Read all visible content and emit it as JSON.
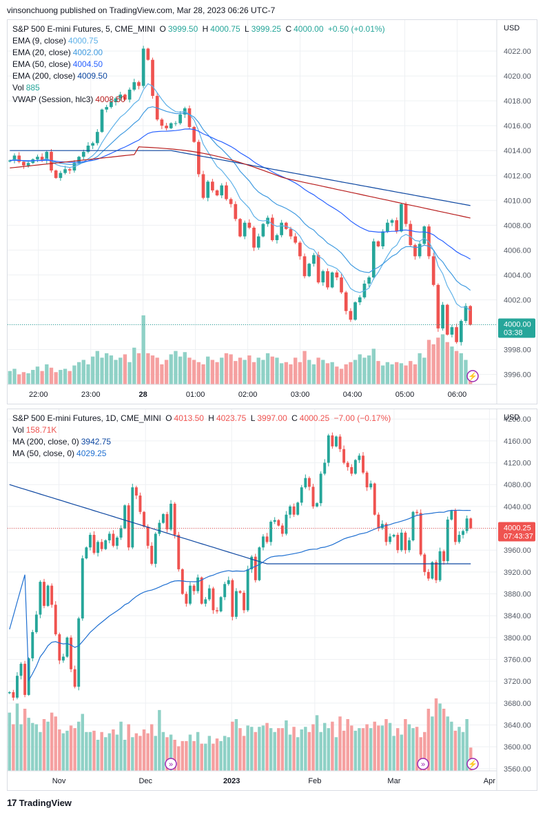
{
  "header": {
    "text": "vinsonchuong published on TradingView.com, Mar 28, 2023 06:26 UTC-7"
  },
  "footer": {
    "brand": "TradingView",
    "logo": "17"
  },
  "colors": {
    "up": "#26a69a",
    "down": "#ef5350",
    "upVol": "#8fd1c6",
    "downVol": "#f5a0a0",
    "ema9": "#5eb1e8",
    "ema20": "#3f9ae0",
    "ema50": "#2962ff",
    "ema200": "#0d47a1",
    "vwap": "#b71c1c",
    "ma200": "#0d47a1",
    "ma50": "#1e6fd1",
    "grid": "#eef0f3",
    "text": "#131722",
    "axis": "#555b66"
  },
  "panel1": {
    "legend": {
      "symbol": "S&P 500 E-mini Futures, 5, CME_MINI",
      "o_label": "O",
      "o": "3999.50",
      "h_label": "H",
      "h": "4000.75",
      "l_label": "L",
      "l": "3999.25",
      "c_label": "C",
      "c": "4000.00",
      "change": "+0.50 (+0.01%)",
      "lines": [
        {
          "label": "EMA (9, close)",
          "value": "4000.75",
          "color": "#5eb1e8"
        },
        {
          "label": "EMA (20, close)",
          "value": "4002.00",
          "color": "#3f9ae0"
        },
        {
          "label": "EMA (50, close)",
          "value": "4004.50",
          "color": "#2962ff"
        },
        {
          "label": "EMA (200, close)",
          "value": "4009.50",
          "color": "#0d47a1"
        },
        {
          "label": "Vol",
          "value": "885",
          "color": "#26a69a"
        },
        {
          "label": "VWAP (Session, hlc3)",
          "value": "4008.50",
          "color": "#b71c1c"
        }
      ]
    },
    "currency": "USD",
    "last_price": "4000.00",
    "countdown": "03:38"
  },
  "panel2": {
    "legend": {
      "symbol": "S&P 500 E-mini Futures, 1D, CME_MINI",
      "o_label": "O",
      "o": "4013.50",
      "h_label": "H",
      "h": "4023.75",
      "l_label": "L",
      "l": "3997.00",
      "c_label": "C",
      "c": "4000.25",
      "change": "−7.00 (−0.17%)",
      "lines": [
        {
          "label": "Vol",
          "value": "158.71K",
          "color": "#ef5350"
        },
        {
          "label": "MA (200, close, 0)",
          "value": "3942.75",
          "color": "#0d47a1"
        },
        {
          "label": "MA (50, close, 0)",
          "value": "4029.25",
          "color": "#1e6fd1"
        }
      ]
    },
    "currency": "USD",
    "last_price": "4000.25",
    "countdown": "07:43:37"
  },
  "chart_data": [
    {
      "type": "candlestick",
      "title": "S&P 500 E-mini Futures, 5, CME_MINI",
      "x_ticks": [
        "22:00",
        "23:00",
        "28",
        "01:00",
        "02:00",
        "03:00",
        "04:00",
        "05:00",
        "06:00"
      ],
      "y_ticks": [
        3996,
        3998,
        4000,
        4002,
        4004,
        4006,
        4008,
        4010,
        4012,
        4014,
        4016,
        4018,
        4020,
        4022
      ],
      "ylim": [
        3995.2,
        4024.5
      ],
      "closes": [
        4013.2,
        4013.6,
        4013.1,
        4012.8,
        4013.0,
        4013.3,
        4013.5,
        4013.2,
        4013.9,
        4012.4,
        4011.8,
        4012.2,
        4012.5,
        4012.4,
        4013.0,
        4013.5,
        4013.9,
        4014.4,
        4014.6,
        4015.5,
        4017.3,
        4017.5,
        4017.9,
        4018.2,
        4018.5,
        4018.1,
        4018.9,
        4019.5,
        4019.2,
        4022.2,
        4021.3,
        4018.4,
        4016.5,
        4016.0,
        4015.8,
        4016.2,
        4016.2,
        4016.9,
        4017.4,
        4015.9,
        4014.7,
        4012.1,
        4010.2,
        4011.5,
        4010.8,
        4010.4,
        4011.2,
        4010.1,
        4009.7,
        4008.5,
        4007.1,
        4008.2,
        4007.8,
        4006.2,
        4007.1,
        4008.1,
        4008.6,
        4006.8,
        4007.2,
        4008.2,
        4007.7,
        4007.1,
        4006.6,
        4005.5,
        4003.9,
        4004.9,
        4005.6,
        4003.4,
        4004.3,
        4003.0,
        4004.2,
        4003.8,
        4002.6,
        4001.1,
        4000.4,
        4001.8,
        4002.2,
        4003.3,
        4003.8,
        4006.7,
        4006.3,
        4007.5,
        4008.2,
        4008.4,
        4007.5,
        4009.7,
        4008.1,
        4006.4,
        4005.5,
        4006.5,
        4007.9,
        4005.5,
        4003.2,
        3999.7,
        4001.6,
        3999.2,
        3999.8,
        3998.6,
        4000.3,
        4001.5,
        4000.0
      ],
      "volume": [
        12,
        14,
        9,
        11,
        10,
        13,
        16,
        12,
        18,
        15,
        11,
        13,
        14,
        12,
        17,
        20,
        22,
        18,
        25,
        30,
        24,
        28,
        26,
        22,
        24,
        27,
        20,
        33,
        28,
        62,
        28,
        26,
        24,
        18,
        22,
        27,
        30,
        25,
        29,
        24,
        22,
        20,
        18,
        25,
        22,
        20,
        24,
        28,
        27,
        21,
        24,
        22,
        26,
        20,
        24,
        22,
        28,
        25,
        24,
        19,
        20,
        18,
        24,
        20,
        30,
        22,
        18,
        24,
        22,
        19,
        20,
        16,
        14,
        18,
        20,
        22,
        27,
        24,
        26,
        32,
        21,
        17,
        20,
        18,
        20,
        19,
        17,
        21,
        18,
        28,
        24,
        40,
        36,
        42,
        45,
        38,
        34,
        30,
        28,
        22,
        8
      ],
      "vwap_last": 4008.5,
      "session_start_label": "28"
    },
    {
      "type": "candlestick",
      "title": "S&P 500 E-mini Futures, 1D, CME_MINI",
      "x_ticks": [
        "Nov",
        "Dec",
        "2023",
        "Feb",
        "Mar",
        "Apr"
      ],
      "y_ticks": [
        3560,
        3600,
        3640,
        3680,
        3720,
        3760,
        3800,
        3840,
        3880,
        3920,
        3960,
        4000,
        4040,
        4080,
        4120,
        4160,
        4200
      ],
      "ylim": [
        3556,
        4218
      ],
      "closes": [
        3700,
        3690,
        3730,
        3752,
        3695,
        3762,
        3810,
        3842,
        3902,
        3858,
        3895,
        3860,
        3806,
        3758,
        3765,
        3800,
        3742,
        3710,
        3835,
        3945,
        3965,
        3988,
        3955,
        3975,
        3962,
        3978,
        3990,
        3968,
        3983,
        4000,
        4042,
        3965,
        4075,
        4060,
        4030,
        4003,
        3968,
        3935,
        3990,
        4010,
        4026,
        3998,
        4045,
        3988,
        3925,
        3880,
        3862,
        3895,
        3885,
        3910,
        3862,
        3870,
        3890,
        3850,
        3848,
        3874,
        3898,
        3905,
        3838,
        3885,
        3882,
        3850,
        3925,
        3948,
        3905,
        3965,
        3985,
        3975,
        4012,
        4015,
        4005,
        3990,
        4025,
        4040,
        4025,
        4047,
        4075,
        4092,
        4076,
        4040,
        4046,
        4100,
        4120,
        4170,
        4150,
        4168,
        4145,
        4120,
        4112,
        4100,
        4125,
        4133,
        4102,
        4075,
        4082,
        4025,
        4000,
        4008,
        3975,
        3985,
        3988,
        3960,
        3992,
        3960,
        3978,
        4030,
        4028,
        3952,
        3920,
        3908,
        3938,
        3905,
        3958,
        3940,
        4016,
        4032,
        3975,
        3988,
        3995,
        4018,
        4000
      ],
      "volume": [
        45,
        36,
        52,
        36,
        48,
        41,
        37,
        36,
        30,
        40,
        38,
        45,
        42,
        32,
        29,
        31,
        35,
        33,
        38,
        44,
        30,
        30,
        31,
        24,
        30,
        26,
        29,
        32,
        28,
        38,
        24,
        36,
        26,
        29,
        27,
        32,
        29,
        36,
        27,
        47,
        30,
        26,
        28,
        24,
        19,
        23,
        23,
        28,
        23,
        30,
        21,
        21,
        27,
        21,
        25,
        23,
        27,
        26,
        38,
        40,
        33,
        27,
        35,
        34,
        30,
        34,
        35,
        37,
        33,
        30,
        33,
        33,
        39,
        28,
        34,
        26,
        32,
        34,
        30,
        36,
        43,
        30,
        37,
        33,
        38,
        26,
        42,
        31,
        40,
        35,
        31,
        33,
        33,
        36,
        33,
        38,
        35,
        35,
        40,
        37,
        27,
        33,
        28,
        40,
        36,
        33,
        34,
        26,
        30,
        48,
        42,
        56,
        52,
        48,
        42,
        38,
        31,
        34,
        30,
        40,
        18
      ],
      "ma200_last": 3942.75,
      "ma50_last": 4029.25
    }
  ]
}
